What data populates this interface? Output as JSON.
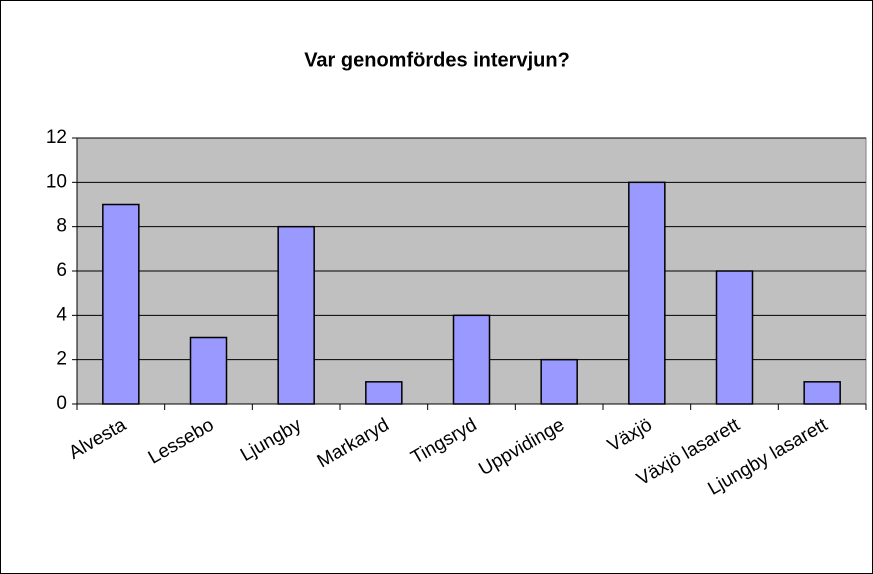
{
  "chart_data": {
    "type": "bar",
    "title": "Var genomfördes intervjun?",
    "categories": [
      "Alvesta",
      "Lessebo",
      "Ljungby",
      "Markaryd",
      "Tingsryd",
      "Uppvidinge",
      "Växjö",
      "Växjö lasarett",
      "Ljungby lasarett"
    ],
    "values": [
      9,
      3,
      8,
      1,
      4,
      2,
      10,
      6,
      1
    ],
    "color": "#9999ff",
    "plot_background": "#c0c0c0",
    "ylim": [
      0,
      12
    ],
    "yticks": [
      0,
      2,
      4,
      6,
      8,
      10,
      12
    ],
    "grid": true
  }
}
